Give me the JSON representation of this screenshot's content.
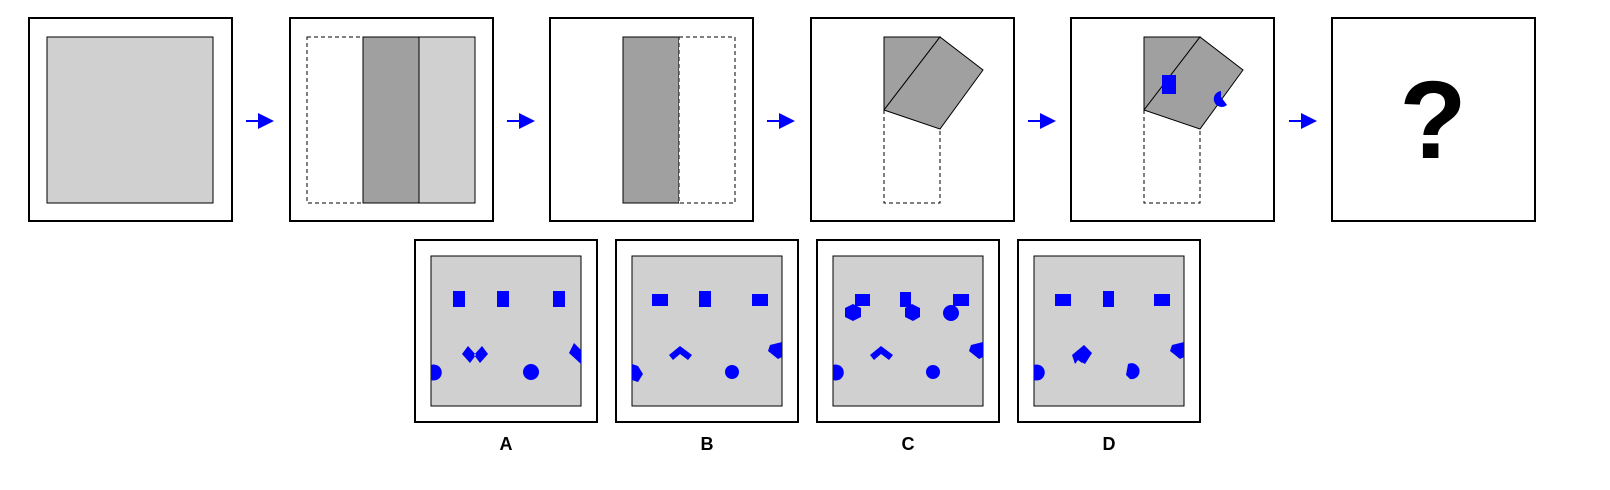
{
  "colors": {
    "frame": "#000000",
    "paper": "#d0d0d0",
    "folded": "#a0a0a0",
    "accent": "#0000ff",
    "background": "#ffffff"
  },
  "sequence": {
    "steps": [
      {
        "name": "step-1-unfolded-square"
      },
      {
        "name": "step-2-vertical-folds"
      },
      {
        "name": "step-3-folded-strip"
      },
      {
        "name": "step-4-diagonal-fold"
      },
      {
        "name": "step-5-punched-holes"
      },
      {
        "name": "step-6-unknown-result"
      }
    ],
    "question_mark": "?"
  },
  "options": [
    {
      "label": "A"
    },
    {
      "label": "B"
    },
    {
      "label": "C"
    },
    {
      "label": "D"
    }
  ]
}
